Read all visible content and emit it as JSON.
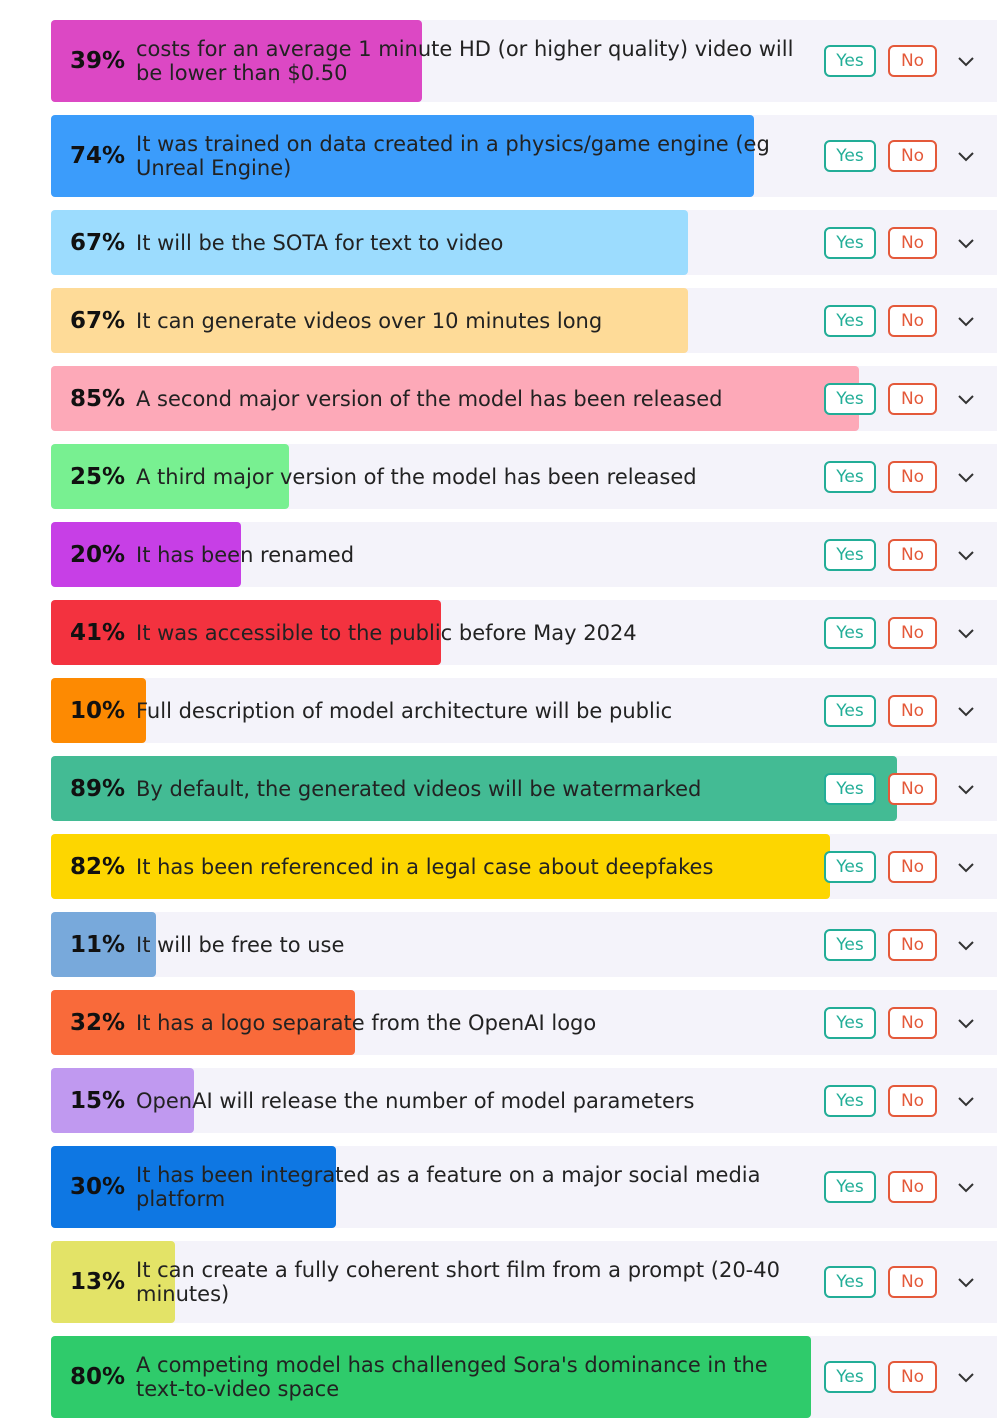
{
  "buttons": {
    "yes": "Yes",
    "no": "No"
  },
  "answers": [
    {
      "probability": 39,
      "probability_label": "39%",
      "text": "costs for an average 1 minute HD (or higher quality) video will be lower than $0.50",
      "color": "#dc48c4"
    },
    {
      "probability": 74,
      "probability_label": "74%",
      "text": "It was trained on data created in a physics/game engine (eg Unreal Engine)",
      "color": "#3b9cfb"
    },
    {
      "probability": 67,
      "probability_label": "67%",
      "text": "It will be the SOTA for text to video",
      "color": "#9cdcfe"
    },
    {
      "probability": 67,
      "probability_label": "67%",
      "text": "It can generate videos over 10 minutes long",
      "color": "#fedb98"
    },
    {
      "probability": 85,
      "probability_label": "85%",
      "text": "A second major version of the model has been released",
      "color": "#fda9b8"
    },
    {
      "probability": 25,
      "probability_label": "25%",
      "text": "A third major version of the model has been released",
      "color": "#78f091"
    },
    {
      "probability": 20,
      "probability_label": "20%",
      "text": "It has been renamed",
      "color": "#c73fe6"
    },
    {
      "probability": 41,
      "probability_label": "41%",
      "text": "It was accessible to the public before May 2024",
      "color": "#f3323f"
    },
    {
      "probability": 10,
      "probability_label": "10%",
      "text": "Full description of model architecture will be public",
      "color": "#fd8a02"
    },
    {
      "probability": 89,
      "probability_label": "89%",
      "text": "By default, the generated videos will be watermarked",
      "color": "#43bb94"
    },
    {
      "probability": 82,
      "probability_label": "82%",
      "text": "It has been referenced in a legal case about deepfakes",
      "color": "#fdd600"
    },
    {
      "probability": 11,
      "probability_label": "11%",
      "text": "It will be free to use",
      "color": "#78a9db"
    },
    {
      "probability": 32,
      "probability_label": "32%",
      "text": "It has a logo separate from the OpenAI logo",
      "color": "#f96a3a"
    },
    {
      "probability": 15,
      "probability_label": "15%",
      "text": "OpenAI will release the number of model parameters",
      "color": "#c099f0"
    },
    {
      "probability": 30,
      "probability_label": "30%",
      "text": "It has been integrated as a feature on a major social media platform",
      "color": "#0e77e3"
    },
    {
      "probability": 13,
      "probability_label": "13%",
      "text": "It can create a fully coherent short film from a prompt (20-40 minutes)",
      "color": "#e3e367"
    },
    {
      "probability": 80,
      "probability_label": "80%",
      "text": "A competing model has challenged Sora's dominance in the text-to-video space",
      "color": "#2fcb6b"
    }
  ]
}
